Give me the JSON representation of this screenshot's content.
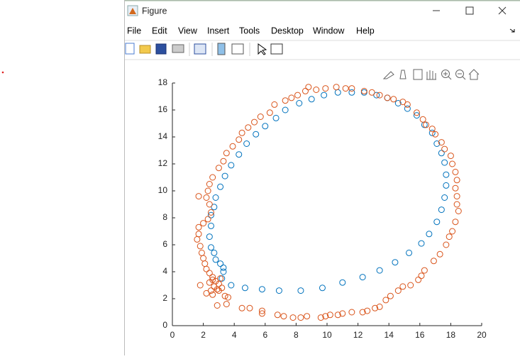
{
  "window": {
    "title": "Figure",
    "menu": [
      "File",
      "Edit",
      "View",
      "Insert",
      "Tools",
      "Desktop",
      "Window",
      "Help"
    ]
  },
  "chart_data": {
    "type": "scatter",
    "xlim": [
      0,
      20
    ],
    "ylim": [
      0,
      18
    ],
    "xticks": [
      0,
      2,
      4,
      6,
      8,
      10,
      12,
      14,
      16,
      18,
      20
    ],
    "yticks": [
      0,
      2,
      4,
      6,
      8,
      10,
      12,
      14,
      16,
      18
    ],
    "grid": false,
    "series": [
      {
        "color": "#0072BD",
        "x": [
          3.8,
          4.7,
          5.8,
          6.9,
          8.3,
          9.7,
          11.0,
          12.3,
          13.4,
          14.4,
          15.3,
          16.1,
          16.6,
          17.1,
          17.4,
          17.6,
          17.7,
          17.7,
          17.6,
          17.4,
          17.1,
          16.8,
          16.3,
          15.8,
          15.2,
          14.6,
          13.9,
          13.2,
          12.4,
          11.6,
          10.7,
          9.8,
          9.0,
          8.2,
          7.3,
          6.7,
          6.0,
          5.4,
          4.8,
          4.3,
          3.8,
          3.4,
          3.1,
          2.8,
          2.7,
          2.5,
          2.5,
          2.4,
          2.5,
          2.7,
          2.8,
          3.1,
          3.3,
          3.3,
          3.2
        ],
        "values": [
          3.0,
          2.8,
          2.7,
          2.6,
          2.6,
          2.8,
          3.2,
          3.6,
          4.1,
          4.7,
          5.4,
          6.1,
          6.8,
          7.7,
          8.6,
          9.5,
          10.4,
          11.2,
          12.1,
          12.8,
          13.5,
          14.3,
          14.9,
          15.6,
          16.1,
          16.5,
          16.9,
          17.1,
          17.3,
          17.3,
          17.3,
          17.1,
          16.8,
          16.5,
          16.0,
          15.4,
          14.8,
          14.2,
          13.5,
          12.7,
          11.9,
          11.1,
          10.3,
          9.5,
          8.8,
          8.2,
          7.4,
          6.6,
          5.8,
          5.4,
          4.9,
          4.6,
          4.3,
          4.0,
          3.5
        ]
      },
      {
        "color": "#D95319",
        "x": [
          1.8,
          2.2,
          2.6,
          3.0,
          3.4,
          3.6,
          3.5,
          2.9,
          4.5,
          5.0,
          5.8,
          5.8,
          6.8,
          7.2,
          7.8,
          8.3,
          8.7,
          9.6,
          9.9,
          10.2,
          10.7,
          11.0,
          11.6,
          12.3,
          12.6,
          13.1,
          13.4,
          13.8,
          14.1,
          14.6,
          14.9,
          15.4,
          15.9,
          16.1,
          16.3,
          16.9,
          17.3,
          17.7,
          17.9,
          18.1,
          18.3,
          18.5,
          18.4,
          18.4,
          18.3,
          18.4,
          18.3,
          18.1,
          18.0,
          17.6,
          17.4,
          17.0,
          16.8,
          16.4,
          16.2,
          15.8,
          15.2,
          14.9,
          14.3,
          13.9,
          13.4,
          12.9,
          12.4,
          11.6,
          11.2,
          10.6,
          9.9,
          9.3,
          8.8,
          8.6,
          8.1,
          7.7,
          7.3,
          6.6,
          6.3,
          5.7,
          5.3,
          4.9,
          4.5,
          4.3,
          3.9,
          3.5,
          3.3,
          3.0,
          2.6,
          2.4,
          2.3,
          1.7,
          2.2,
          2.4,
          2.5,
          2.3,
          2.0,
          1.7,
          1.7,
          1.6,
          1.8,
          1.9,
          2.0,
          2.1,
          2.2,
          2.4,
          2.6,
          2.8,
          3.0,
          2.7,
          2.4,
          3.2,
          2.9,
          2.6,
          3.1,
          2.5
        ],
        "values": [
          3.0,
          2.4,
          2.3,
          2.6,
          2.2,
          2.1,
          1.6,
          1.5,
          1.3,
          1.3,
          0.9,
          1.1,
          0.8,
          0.7,
          0.6,
          0.6,
          0.7,
          0.6,
          0.7,
          0.8,
          0.8,
          0.9,
          1.0,
          1.0,
          1.1,
          1.3,
          1.4,
          1.9,
          2.2,
          2.6,
          2.9,
          3.0,
          3.4,
          3.7,
          4.1,
          4.8,
          5.3,
          6.0,
          6.6,
          7.0,
          7.7,
          8.5,
          9.0,
          9.6,
          10.2,
          10.8,
          11.4,
          12.0,
          12.6,
          13.1,
          13.6,
          14.2,
          14.6,
          14.9,
          15.3,
          15.8,
          16.4,
          16.6,
          16.8,
          16.9,
          17.1,
          17.3,
          17.4,
          17.6,
          17.6,
          17.7,
          17.6,
          17.5,
          17.7,
          17.4,
          17.1,
          16.9,
          16.7,
          16.4,
          15.8,
          15.5,
          15.1,
          14.7,
          14.3,
          13.8,
          13.3,
          12.8,
          12.2,
          11.7,
          11.0,
          10.5,
          10.0,
          9.6,
          9.5,
          9.0,
          8.4,
          7.9,
          7.6,
          7.3,
          6.8,
          6.4,
          5.9,
          5.4,
          5.0,
          4.6,
          4.2,
          3.9,
          3.6,
          3.3,
          3.1,
          2.9,
          3.2,
          2.8,
          2.7,
          3.4,
          3.5,
          2.6
        ]
      }
    ]
  }
}
